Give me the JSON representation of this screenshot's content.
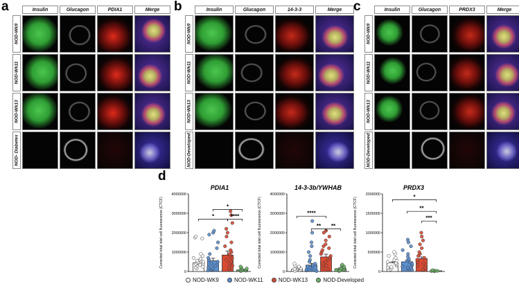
{
  "panel_a": {
    "letter": "a",
    "columns": [
      "Insulin",
      "Glucagon",
      "PDIA1",
      "Merge"
    ],
    "rows": [
      "NOD-Wk9",
      "NOD-Wk11",
      "NOD-Wk13",
      "NOD- Diabetes"
    ]
  },
  "panel_b": {
    "letter": "b",
    "columns": [
      "Insulin",
      "Glucagon",
      "14-3-3",
      "Merge"
    ],
    "rows": [
      "NOD-Wk9",
      "NOD-Wk11",
      "NOD-Wk13",
      "NOD-Developed"
    ]
  },
  "panel_c": {
    "letter": "c",
    "columns": [
      "Insulin",
      "Glucagon",
      "PRDX3",
      "Merge"
    ],
    "rows": [
      "NOD-Wk9",
      "NOD-Wk11",
      "NOD-Wk13",
      "NOD-Developed"
    ]
  },
  "panel_d": {
    "letter": "d",
    "legend": [
      {
        "label": "NOD-WK9",
        "color": "#ffffff"
      },
      {
        "label": "NOD-WK11",
        "color": "#5b8fce"
      },
      {
        "label": "NOD-WK13",
        "color": "#d84a32"
      },
      {
        "label": "NOD-Developed",
        "color": "#6fb36a"
      }
    ]
  },
  "chart_data": [
    {
      "type": "bar",
      "title": "PDIA1",
      "ylabel": "Corrected total islet cell fluorescence (CTCF)",
      "ylim": [
        0,
        4000000
      ],
      "yticks": [
        0,
        1000000,
        2000000,
        3000000,
        4000000
      ],
      "ytick_labels": [
        "0",
        "1000000",
        "2000000",
        "3000000",
        "4000000"
      ],
      "categories": [
        "NOD-WK9",
        "NOD-WK11",
        "NOD-WK13",
        "NOD-Developed"
      ],
      "values": [
        450000,
        550000,
        850000,
        80000
      ],
      "errors": [
        60000,
        130000,
        200000,
        20000
      ],
      "points": [
        [
          150000,
          200000,
          250000,
          300000,
          350000,
          380000,
          400000,
          420000,
          450000,
          480000,
          500000,
          520000,
          550000,
          600000,
          650000,
          700000,
          800000,
          900000,
          1700000,
          1750000,
          1800000
        ],
        [
          50000,
          100000,
          150000,
          200000,
          300000,
          400000,
          500000,
          600000,
          700000,
          900000,
          1200000,
          1500000,
          1900000,
          2000000,
          2100000
        ],
        [
          100000,
          200000,
          300000,
          400000,
          500000,
          600000,
          700000,
          800000,
          900000,
          1000000,
          1100000,
          1300000,
          1500000,
          1800000,
          2000000,
          2200000,
          2500000,
          2900000,
          3100000
        ],
        [
          20000,
          40000,
          60000,
          80000,
          100000,
          120000,
          150000,
          200000,
          250000
        ]
      ],
      "brackets": [
        {
          "from": 0,
          "to": 2,
          "y": 2700000,
          "label": "*"
        },
        {
          "from": 1,
          "to": 3,
          "y": 3200000,
          "label": "*"
        },
        {
          "from": 2,
          "to": 3,
          "y": 2700000,
          "label": "****"
        }
      ]
    },
    {
      "type": "bar",
      "title": "14-3-3b/YWHAB",
      "ylabel": "Corrected total islet cell fluorescence (CTCF)",
      "ylim": [
        0,
        4000000
      ],
      "yticks": [
        0,
        1000000,
        2000000,
        3000000,
        4000000
      ],
      "ytick_labels": [
        "0",
        "1000000",
        "2000000",
        "3000000",
        "4000000"
      ],
      "categories": [
        "NOD-WK9",
        "NOD-WK11",
        "NOD-WK13",
        "NOD-Developed"
      ],
      "values": [
        120000,
        330000,
        750000,
        150000
      ],
      "errors": [
        30000,
        90000,
        140000,
        40000
      ],
      "points": [
        [
          30000,
          60000,
          80000,
          100000,
          120000,
          140000,
          160000,
          180000,
          200000,
          250000,
          300000,
          400000
        ],
        [
          20000,
          50000,
          100000,
          150000,
          200000,
          300000,
          400000,
          500000,
          600000,
          800000,
          1000000,
          1300000,
          1500000,
          2000000,
          2600000
        ],
        [
          100000,
          200000,
          300000,
          400000,
          500000,
          600000,
          700000,
          800000,
          900000,
          1000000,
          1100000,
          1200000,
          1300000,
          1400000,
          1600000,
          1800000,
          2000000,
          2100000
        ],
        [
          20000,
          50000,
          80000,
          100000,
          150000,
          200000,
          250000,
          300000,
          350000
        ]
      ],
      "brackets": [
        {
          "from": 0,
          "to": 2,
          "y": 2850000,
          "label": "****"
        },
        {
          "from": 1,
          "to": 2,
          "y": 2200000,
          "label": "**"
        },
        {
          "from": 2,
          "to": 3,
          "y": 2200000,
          "label": "**"
        }
      ]
    },
    {
      "type": "bar",
      "title": "PRDX3",
      "ylabel": "Corrected total islet cell fluorescence (CTCF)",
      "ylim": [
        0,
        2000000
      ],
      "yticks": [
        0,
        500000,
        1000000,
        1500000,
        2000000
      ],
      "ytick_labels": [
        "0",
        "500000",
        "1000000",
        "1500000",
        "2000000"
      ],
      "categories": [
        "NOD-WK9",
        "NOD-WK11",
        "NOD-WK13",
        "NOD-Developed"
      ],
      "values": [
        220000,
        250000,
        330000,
        20000
      ],
      "errors": [
        30000,
        35000,
        45000,
        5000
      ],
      "points": [
        [
          50000,
          80000,
          100000,
          120000,
          150000,
          180000,
          200000,
          220000,
          250000,
          280000,
          300000,
          350000,
          400000,
          450000,
          500000
        ],
        [
          40000,
          70000,
          100000,
          130000,
          160000,
          200000,
          240000,
          280000,
          320000,
          380000,
          450000,
          550000,
          650000,
          750000,
          820000
        ],
        [
          50000,
          100000,
          150000,
          200000,
          250000,
          300000,
          350000,
          400000,
          450000,
          500000,
          600000,
          700000,
          800000,
          900000,
          1000000
        ],
        [
          5000,
          10000,
          15000,
          20000,
          25000,
          30000
        ]
      ],
      "brackets": [
        {
          "from": 0,
          "to": 3,
          "y": 1850000,
          "label": "*"
        },
        {
          "from": 1,
          "to": 3,
          "y": 1550000,
          "label": "**"
        },
        {
          "from": 2,
          "to": 3,
          "y": 1300000,
          "label": "***"
        }
      ]
    }
  ]
}
